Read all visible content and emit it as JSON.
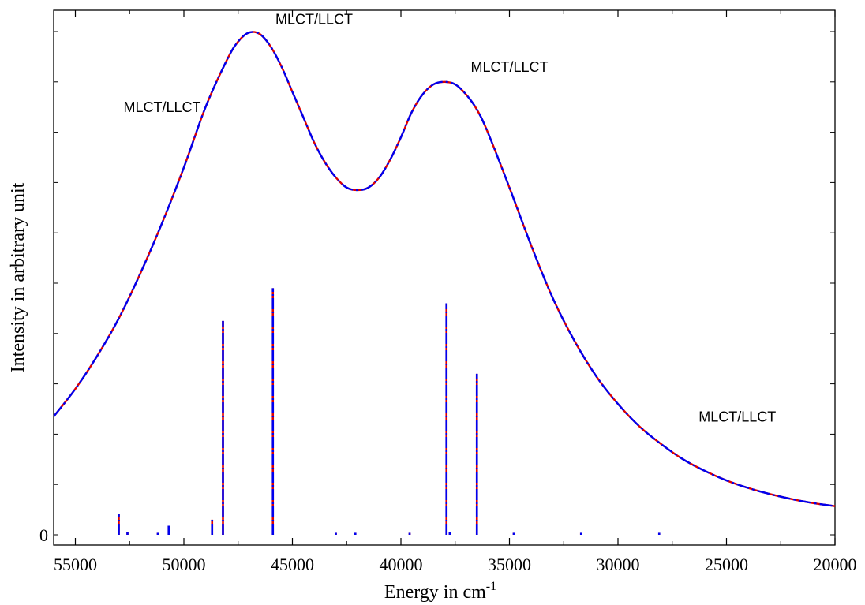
{
  "chart_data": {
    "type": "line",
    "title": "",
    "xlabel": "Energy in cm",
    "xlabel_superscript": "-1",
    "ylabel": "Intensity in arbitrary unit",
    "xlim": [
      56000,
      20000
    ],
    "x_reversed": true,
    "ylim": [
      0,
      1.0
    ],
    "x_ticks": [
      55000,
      50000,
      45000,
      40000,
      35000,
      30000,
      25000,
      20000
    ],
    "x_tick_labels": [
      "55000",
      "50000",
      "45000",
      "40000",
      "35000",
      "30000",
      "25000",
      "20000"
    ],
    "y_ticks": [
      0
    ],
    "y_tick_labels": [
      "0"
    ],
    "grid": false,
    "series": [
      {
        "style": "dash-dot",
        "colors": [
          "#dd0000",
          "#0000ee"
        ],
        "x": [
          56000,
          55000,
          54000,
          53000,
          52000,
          51000,
          50000,
          49000,
          48000,
          47500,
          47000,
          46500,
          46000,
          45500,
          45000,
          44500,
          44000,
          43500,
          43000,
          42500,
          42000,
          41500,
          41000,
          40500,
          40000,
          39500,
          39000,
          38500,
          38000,
          37500,
          37000,
          36500,
          36000,
          35000,
          34000,
          33000,
          32000,
          31000,
          30000,
          29000,
          28000,
          27000,
          26000,
          25000,
          24000,
          23000,
          22000,
          21000,
          20000
        ],
        "y": [
          0.235,
          0.29,
          0.355,
          0.43,
          0.52,
          0.62,
          0.73,
          0.85,
          0.945,
          0.98,
          0.998,
          0.995,
          0.97,
          0.93,
          0.88,
          0.83,
          0.78,
          0.74,
          0.71,
          0.69,
          0.685,
          0.69,
          0.71,
          0.745,
          0.79,
          0.84,
          0.875,
          0.895,
          0.9,
          0.895,
          0.875,
          0.845,
          0.8,
          0.69,
          0.575,
          0.47,
          0.385,
          0.315,
          0.26,
          0.215,
          0.18,
          0.15,
          0.127,
          0.108,
          0.093,
          0.081,
          0.071,
          0.063,
          0.057
        ]
      }
    ],
    "sticks": {
      "colors": [
        "#dd0000",
        "#0000ee"
      ],
      "x": [
        53000,
        52600,
        51200,
        50700,
        48700,
        48200,
        45900,
        43000,
        42100,
        39600,
        37900,
        37750,
        36500,
        34800,
        31700,
        28100
      ],
      "y": [
        0.042,
        0.005,
        0.004,
        0.018,
        0.03,
        0.425,
        0.49,
        0.004,
        0.004,
        0.004,
        0.46,
        0.005,
        0.32,
        0.004,
        0.004,
        0.004
      ]
    },
    "annotations": [
      {
        "text": "MLCT/LLCT",
        "x": 51000,
        "y": 0.84
      },
      {
        "text": "MLCT/LLCT",
        "x": 44000,
        "y": 1.015
      },
      {
        "text": "MLCT/LLCT",
        "x": 35000,
        "y": 0.92
      },
      {
        "text": "MLCT/LLCT",
        "x": 24500,
        "y": 0.225
      }
    ]
  }
}
